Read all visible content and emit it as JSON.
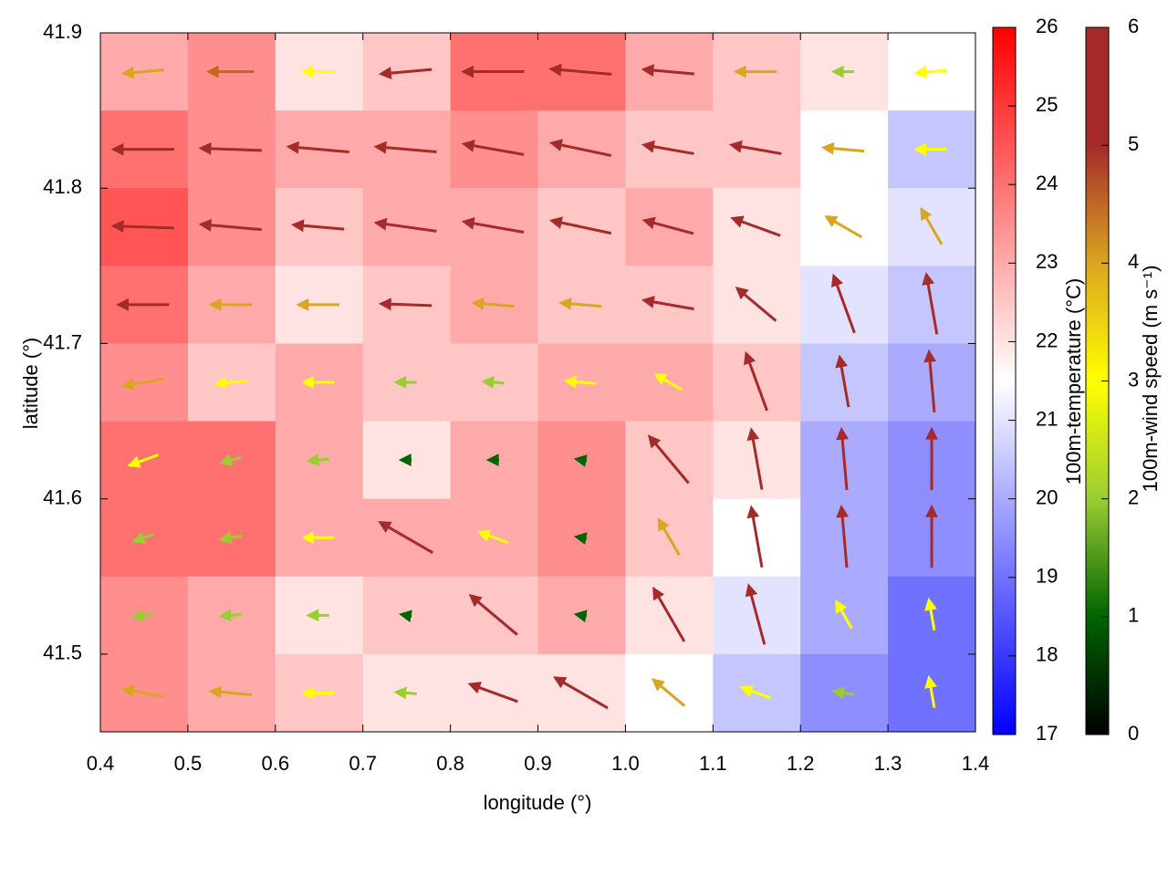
{
  "chart_data": {
    "type": "heatmap_vector",
    "xlabel": "longitude (°)",
    "ylabel": "latitude (°)",
    "xlim": [
      0.4,
      1.4
    ],
    "xticks": [
      0.4,
      0.5,
      0.6,
      0.7,
      0.8,
      0.9,
      {
        "value": 1,
        "label": "1.0"
      },
      1.1,
      1.2,
      1.3,
      1.4
    ],
    "ylim": [
      41.45,
      41.9
    ],
    "yticks": [
      41.5,
      41.6,
      41.7,
      41.8,
      41.9
    ],
    "lon": [
      0.45,
      0.55,
      0.65,
      0.75,
      0.85,
      0.95,
      1.05,
      1.15,
      1.25,
      1.35
    ],
    "lat": [
      41.875,
      41.825,
      41.775,
      41.725,
      41.675,
      41.625,
      41.575,
      41.525,
      41.475
    ],
    "temperature": [
      [
        23,
        23.5,
        22,
        22.5,
        24,
        24,
        23,
        22.5,
        22,
        21.5
      ],
      [
        24,
        23.5,
        23,
        23,
        23.5,
        23,
        22.5,
        22.5,
        21.5,
        20.5
      ],
      [
        24.5,
        23.5,
        22.5,
        23,
        23,
        22.5,
        23,
        22,
        21.5,
        21
      ],
      [
        24,
        23,
        22,
        22.5,
        23,
        22.5,
        22.5,
        22,
        21,
        20.5
      ],
      [
        23.5,
        22.5,
        23,
        22.5,
        22.5,
        23,
        23,
        22.5,
        20.5,
        20
      ],
      [
        24,
        24,
        23,
        22,
        23,
        23.5,
        22.5,
        22,
        20,
        19.5
      ],
      [
        24,
        24,
        23,
        23,
        23,
        23.5,
        22.5,
        21.5,
        20,
        19.5
      ],
      [
        23.5,
        23,
        22,
        22.5,
        22.5,
        23,
        22,
        21,
        20,
        19
      ],
      [
        23.5,
        23,
        22.5,
        22,
        22,
        22,
        21.5,
        20.5,
        19.5,
        19
      ]
    ],
    "wind_speed": [
      [
        4,
        4.5,
        3,
        5,
        6,
        6,
        5,
        4,
        2,
        3
      ],
      [
        6,
        6,
        6,
        6,
        6,
        6,
        5,
        5,
        4,
        3
      ],
      [
        6,
        6,
        5,
        6,
        6,
        6,
        5,
        5,
        4,
        4
      ],
      [
        5,
        4,
        4,
        5,
        4,
        4,
        5,
        5,
        6,
        6
      ],
      [
        4,
        3,
        3,
        2,
        2,
        3,
        3,
        6,
        5,
        6
      ],
      [
        3,
        2,
        2,
        1,
        1,
        1,
        6,
        6,
        6,
        6
      ],
      [
        2,
        2,
        3,
        6,
        3,
        1,
        4,
        6,
        6,
        6
      ],
      [
        2,
        2,
        2,
        1,
        6,
        1,
        6,
        6,
        3,
        3
      ],
      [
        4,
        4,
        3,
        2,
        5,
        6,
        4,
        3,
        2,
        3
      ]
    ],
    "wind_direction": [
      [
        185,
        180,
        180,
        185,
        180,
        175,
        175,
        180,
        180,
        185
      ],
      [
        180,
        178,
        175,
        175,
        170,
        168,
        170,
        170,
        175,
        180
      ],
      [
        178,
        175,
        175,
        172,
        170,
        168,
        165,
        160,
        150,
        120
      ],
      [
        180,
        180,
        180,
        178,
        175,
        175,
        170,
        140,
        110,
        100
      ],
      [
        190,
        185,
        180,
        180,
        175,
        175,
        150,
        110,
        100,
        95
      ],
      [
        200,
        195,
        185,
        180,
        180,
        170,
        130,
        100,
        95,
        90
      ],
      [
        200,
        190,
        180,
        150,
        160,
        170,
        120,
        100,
        95,
        90
      ],
      [
        190,
        185,
        180,
        170,
        140,
        170,
        120,
        105,
        120,
        100
      ],
      [
        170,
        175,
        180,
        175,
        160,
        150,
        140,
        160,
        170,
        100
      ]
    ],
    "colorbar_label": "100m-temperature (°C)",
    "clim": [
      17,
      26
    ],
    "cticks": [
      17,
      18,
      19,
      20,
      21,
      22,
      23,
      24,
      25,
      26
    ],
    "temperature_colors": [
      "#0000ff",
      "#ffffff",
      "#ff0000"
    ],
    "wind_label": "100m-wind speed (m s⁻¹)",
    "wlim": [
      0,
      6
    ],
    "wticks": [
      0,
      1,
      2,
      3,
      4,
      5,
      6
    ],
    "wind_colors": [
      "#000000",
      "#006400",
      "#9acd32",
      "#ffff00",
      "#daa520",
      "#a52a2a",
      "#a52a2a"
    ]
  }
}
